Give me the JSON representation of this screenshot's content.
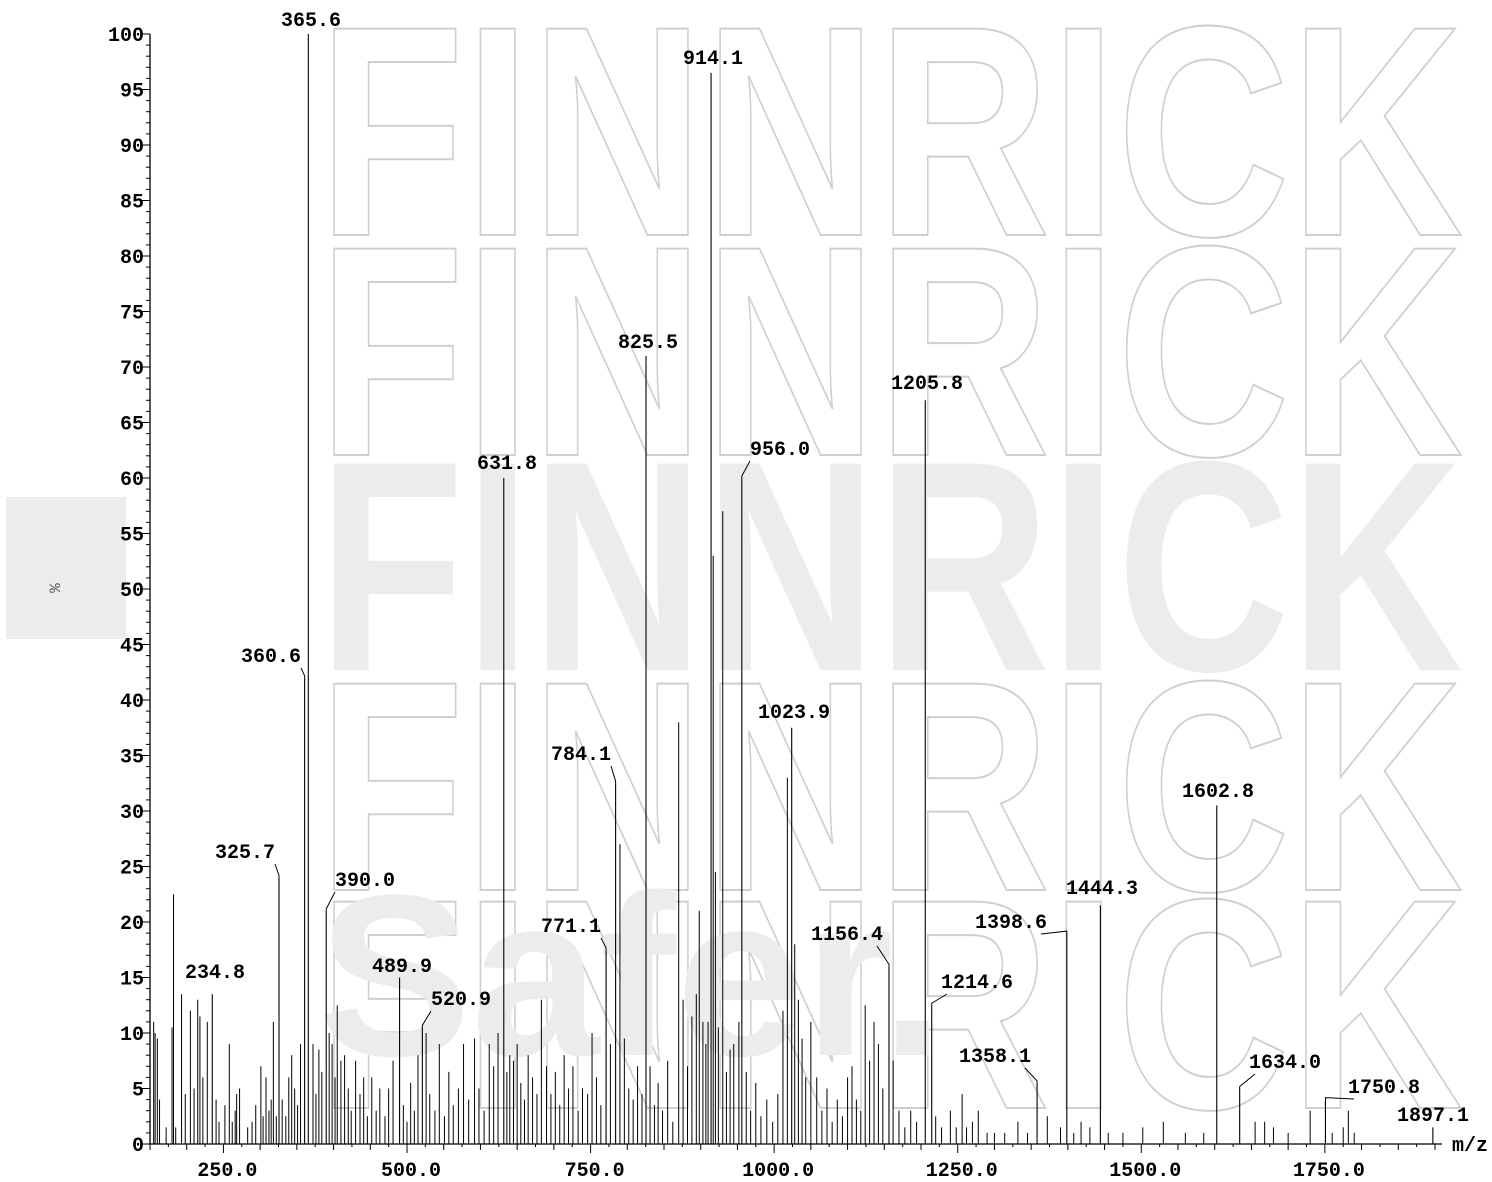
{
  "watermark": {
    "text": "FINNRICK",
    "subtext": "Safer."
  },
  "chart_data": {
    "type": "bar",
    "xlabel": "m/z",
    "ylabel": "%",
    "xlim": [
      150,
      1900
    ],
    "ylim": [
      0,
      100
    ],
    "x_ticks": [
      250.0,
      500.0,
      750.0,
      1000.0,
      1250.0,
      1500.0,
      1750.0
    ],
    "x_tick_labels": [
      "250.0",
      "500.0",
      "750.0",
      "1000.0",
      "1250.0",
      "1500.0",
      "1750.0"
    ],
    "y_ticks": [
      0,
      5,
      10,
      15,
      20,
      25,
      30,
      35,
      40,
      45,
      50,
      55,
      60,
      65,
      70,
      75,
      80,
      85,
      90,
      95,
      100
    ],
    "y_tick_labels": [
      "0",
      "5",
      "10",
      "15",
      "20",
      "25",
      "30",
      "35",
      "40",
      "45",
      "50",
      "55",
      "60",
      "65",
      "70",
      "75",
      "80",
      "85",
      "90",
      "95",
      "100"
    ],
    "labeled_peaks": [
      {
        "mz": 234.8,
        "intensity": 13.5,
        "label": "234.8"
      },
      {
        "mz": 325.7,
        "intensity": 24.0,
        "label": "325.7"
      },
      {
        "mz": 360.6,
        "intensity": 42.0,
        "label": "360.6"
      },
      {
        "mz": 365.6,
        "intensity": 100.0,
        "label": "365.6"
      },
      {
        "mz": 390.0,
        "intensity": 21.0,
        "label": "390.0"
      },
      {
        "mz": 489.9,
        "intensity": 15.0,
        "label": "489.9"
      },
      {
        "mz": 520.9,
        "intensity": 10.5,
        "label": "520.9"
      },
      {
        "mz": 631.8,
        "intensity": 60.0,
        "label": "631.8"
      },
      {
        "mz": 771.1,
        "intensity": 17.5,
        "label": "771.1"
      },
      {
        "mz": 784.1,
        "intensity": 32.5,
        "label": "784.1"
      },
      {
        "mz": 825.5,
        "intensity": 71.0,
        "label": "825.5"
      },
      {
        "mz": 914.1,
        "intensity": 96.5,
        "label": "914.1"
      },
      {
        "mz": 956.0,
        "intensity": 60.0,
        "label": "956.0"
      },
      {
        "mz": 1023.9,
        "intensity": 37.5,
        "label": "1023.9"
      },
      {
        "mz": 1156.4,
        "intensity": 16.0,
        "label": "1156.4"
      },
      {
        "mz": 1205.8,
        "intensity": 67.0,
        "label": "1205.8"
      },
      {
        "mz": 1214.6,
        "intensity": 12.5,
        "label": "1214.6"
      },
      {
        "mz": 1358.1,
        "intensity": 5.5,
        "label": "1358.1"
      },
      {
        "mz": 1398.6,
        "intensity": 19.0,
        "label": "1398.6"
      },
      {
        "mz": 1444.3,
        "intensity": 21.5,
        "label": "1444.3"
      },
      {
        "mz": 1602.8,
        "intensity": 30.5,
        "label": "1602.8"
      },
      {
        "mz": 1634.0,
        "intensity": 5.0,
        "label": "1634.0"
      },
      {
        "mz": 1750.8,
        "intensity": 4.0,
        "label": "1750.8"
      },
      {
        "mz": 1897.1,
        "intensity": 1.5,
        "label": "1897.1"
      }
    ],
    "unlabeled_peaks": [
      {
        "mz": 155,
        "intensity": 11.0
      },
      {
        "mz": 157,
        "intensity": 10.0
      },
      {
        "mz": 160,
        "intensity": 9.5
      },
      {
        "mz": 163,
        "intensity": 4.0
      },
      {
        "mz": 172,
        "intensity": 1.5
      },
      {
        "mz": 180,
        "intensity": 10.5
      },
      {
        "mz": 182,
        "intensity": 22.5
      },
      {
        "mz": 185,
        "intensity": 1.5
      },
      {
        "mz": 193,
        "intensity": 13.5
      },
      {
        "mz": 198,
        "intensity": 4.5
      },
      {
        "mz": 205,
        "intensity": 12.0
      },
      {
        "mz": 210,
        "intensity": 5.0
      },
      {
        "mz": 215,
        "intensity": 13.0
      },
      {
        "mz": 218,
        "intensity": 11.5
      },
      {
        "mz": 222,
        "intensity": 6.0
      },
      {
        "mz": 228,
        "intensity": 11.0
      },
      {
        "mz": 240,
        "intensity": 4.0
      },
      {
        "mz": 244,
        "intensity": 2.0
      },
      {
        "mz": 252,
        "intensity": 3.5
      },
      {
        "mz": 258,
        "intensity": 9.0
      },
      {
        "mz": 262,
        "intensity": 2.0
      },
      {
        "mz": 266,
        "intensity": 3.0
      },
      {
        "mz": 268,
        "intensity": 4.5
      },
      {
        "mz": 272,
        "intensity": 5.0
      },
      {
        "mz": 283,
        "intensity": 1.5
      },
      {
        "mz": 289,
        "intensity": 2.0
      },
      {
        "mz": 294,
        "intensity": 3.5
      },
      {
        "mz": 301,
        "intensity": 7.0
      },
      {
        "mz": 304,
        "intensity": 2.5
      },
      {
        "mz": 308,
        "intensity": 6.0
      },
      {
        "mz": 312,
        "intensity": 3.0
      },
      {
        "mz": 315,
        "intensity": 4.0
      },
      {
        "mz": 318,
        "intensity": 11.0
      },
      {
        "mz": 322,
        "intensity": 2.5
      },
      {
        "mz": 330,
        "intensity": 4.0
      },
      {
        "mz": 335,
        "intensity": 2.5
      },
      {
        "mz": 339,
        "intensity": 6.0
      },
      {
        "mz": 343,
        "intensity": 8.0
      },
      {
        "mz": 347,
        "intensity": 5.0
      },
      {
        "mz": 351,
        "intensity": 3.5
      },
      {
        "mz": 355,
        "intensity": 9.0
      },
      {
        "mz": 372,
        "intensity": 9.0
      },
      {
        "mz": 376,
        "intensity": 4.5
      },
      {
        "mz": 380,
        "intensity": 8.5
      },
      {
        "mz": 384,
        "intensity": 6.5
      },
      {
        "mz": 394,
        "intensity": 10.0
      },
      {
        "mz": 398,
        "intensity": 9.0
      },
      {
        "mz": 402,
        "intensity": 6.0
      },
      {
        "mz": 405,
        "intensity": 12.5
      },
      {
        "mz": 410,
        "intensity": 7.5
      },
      {
        "mz": 415,
        "intensity": 8.0
      },
      {
        "mz": 420,
        "intensity": 5.0
      },
      {
        "mz": 424,
        "intensity": 3.0
      },
      {
        "mz": 430,
        "intensity": 7.5
      },
      {
        "mz": 436,
        "intensity": 4.5
      },
      {
        "mz": 441,
        "intensity": 6.0
      },
      {
        "mz": 446,
        "intensity": 2.5
      },
      {
        "mz": 452,
        "intensity": 6.0
      },
      {
        "mz": 458,
        "intensity": 3.0
      },
      {
        "mz": 463,
        "intensity": 5.0
      },
      {
        "mz": 470,
        "intensity": 2.5
      },
      {
        "mz": 475,
        "intensity": 5.0
      },
      {
        "mz": 481,
        "intensity": 7.5
      },
      {
        "mz": 495,
        "intensity": 3.5
      },
      {
        "mz": 500,
        "intensity": 2.0
      },
      {
        "mz": 505,
        "intensity": 5.5
      },
      {
        "mz": 510,
        "intensity": 3.0
      },
      {
        "mz": 515,
        "intensity": 8.0
      },
      {
        "mz": 526,
        "intensity": 10.0
      },
      {
        "mz": 531,
        "intensity": 4.5
      },
      {
        "mz": 538,
        "intensity": 3.0
      },
      {
        "mz": 544,
        "intensity": 9.0
      },
      {
        "mz": 551,
        "intensity": 2.5
      },
      {
        "mz": 557,
        "intensity": 6.5
      },
      {
        "mz": 563,
        "intensity": 3.5
      },
      {
        "mz": 570,
        "intensity": 5.0
      },
      {
        "mz": 577,
        "intensity": 9.0
      },
      {
        "mz": 584,
        "intensity": 4.0
      },
      {
        "mz": 592,
        "intensity": 9.5
      },
      {
        "mz": 598,
        "intensity": 5.0
      },
      {
        "mz": 605,
        "intensity": 3.0
      },
      {
        "mz": 612,
        "intensity": 9.0
      },
      {
        "mz": 618,
        "intensity": 7.0
      },
      {
        "mz": 624,
        "intensity": 10.0
      },
      {
        "mz": 636,
        "intensity": 6.5
      },
      {
        "mz": 640,
        "intensity": 8.0
      },
      {
        "mz": 645,
        "intensity": 7.5
      },
      {
        "mz": 650,
        "intensity": 9.0
      },
      {
        "mz": 655,
        "intensity": 5.5
      },
      {
        "mz": 660,
        "intensity": 4.0
      },
      {
        "mz": 665,
        "intensity": 8.0
      },
      {
        "mz": 671,
        "intensity": 6.0
      },
      {
        "mz": 677,
        "intensity": 4.5
      },
      {
        "mz": 683,
        "intensity": 13.0
      },
      {
        "mz": 690,
        "intensity": 7.0
      },
      {
        "mz": 696,
        "intensity": 4.5
      },
      {
        "mz": 702,
        "intensity": 6.5
      },
      {
        "mz": 708,
        "intensity": 3.5
      },
      {
        "mz": 714,
        "intensity": 8.0
      },
      {
        "mz": 720,
        "intensity": 5.0
      },
      {
        "mz": 726,
        "intensity": 7.0
      },
      {
        "mz": 733,
        "intensity": 3.0
      },
      {
        "mz": 739,
        "intensity": 5.0
      },
      {
        "mz": 746,
        "intensity": 4.5
      },
      {
        "mz": 752,
        "intensity": 10.0
      },
      {
        "mz": 758,
        "intensity": 6.0
      },
      {
        "mz": 764,
        "intensity": 3.5
      },
      {
        "mz": 777,
        "intensity": 9.0
      },
      {
        "mz": 790,
        "intensity": 27.0
      },
      {
        "mz": 796,
        "intensity": 9.5
      },
      {
        "mz": 802,
        "intensity": 5.0
      },
      {
        "mz": 808,
        "intensity": 4.0
      },
      {
        "mz": 814,
        "intensity": 7.0
      },
      {
        "mz": 820,
        "intensity": 4.5
      },
      {
        "mz": 831,
        "intensity": 7.0
      },
      {
        "mz": 837,
        "intensity": 3.5
      },
      {
        "mz": 842,
        "intensity": 5.5
      },
      {
        "mz": 848,
        "intensity": 3.0
      },
      {
        "mz": 855,
        "intensity": 7.5
      },
      {
        "mz": 862,
        "intensity": 2.0
      },
      {
        "mz": 870,
        "intensity": 38.0
      },
      {
        "mz": 876,
        "intensity": 13.0
      },
      {
        "mz": 882,
        "intensity": 7.0
      },
      {
        "mz": 888,
        "intensity": 11.5
      },
      {
        "mz": 894,
        "intensity": 13.5
      },
      {
        "mz": 898,
        "intensity": 21.0
      },
      {
        "mz": 903,
        "intensity": 11.0
      },
      {
        "mz": 907,
        "intensity": 9.0
      },
      {
        "mz": 910,
        "intensity": 11.0
      },
      {
        "mz": 917,
        "intensity": 53.0
      },
      {
        "mz": 920,
        "intensity": 24.5
      },
      {
        "mz": 924,
        "intensity": 10.5
      },
      {
        "mz": 930,
        "intensity": 57.0
      },
      {
        "mz": 935,
        "intensity": 6.5
      },
      {
        "mz": 940,
        "intensity": 8.5
      },
      {
        "mz": 945,
        "intensity": 9.0
      },
      {
        "mz": 952,
        "intensity": 11.0
      },
      {
        "mz": 962,
        "intensity": 6.5
      },
      {
        "mz": 968,
        "intensity": 3.0
      },
      {
        "mz": 975,
        "intensity": 5.5
      },
      {
        "mz": 982,
        "intensity": 2.5
      },
      {
        "mz": 990,
        "intensity": 4.0
      },
      {
        "mz": 998,
        "intensity": 2.0
      },
      {
        "mz": 1005,
        "intensity": 4.5
      },
      {
        "mz": 1012,
        "intensity": 12.0
      },
      {
        "mz": 1018,
        "intensity": 33.0
      },
      {
        "mz": 1028,
        "intensity": 18.0
      },
      {
        "mz": 1033,
        "intensity": 13.0
      },
      {
        "mz": 1038,
        "intensity": 9.5
      },
      {
        "mz": 1043,
        "intensity": 6.0
      },
      {
        "mz": 1050,
        "intensity": 11.0
      },
      {
        "mz": 1058,
        "intensity": 6.0
      },
      {
        "mz": 1065,
        "intensity": 3.0
      },
      {
        "mz": 1072,
        "intensity": 5.0
      },
      {
        "mz": 1079,
        "intensity": 2.0
      },
      {
        "mz": 1086,
        "intensity": 4.0
      },
      {
        "mz": 1093,
        "intensity": 2.5
      },
      {
        "mz": 1100,
        "intensity": 6.0
      },
      {
        "mz": 1106,
        "intensity": 7.0
      },
      {
        "mz": 1112,
        "intensity": 4.0
      },
      {
        "mz": 1118,
        "intensity": 3.0
      },
      {
        "mz": 1124,
        "intensity": 12.5
      },
      {
        "mz": 1130,
        "intensity": 7.5
      },
      {
        "mz": 1136,
        "intensity": 11.0
      },
      {
        "mz": 1142,
        "intensity": 9.0
      },
      {
        "mz": 1148,
        "intensity": 5.0
      },
      {
        "mz": 1162,
        "intensity": 7.5
      },
      {
        "mz": 1170,
        "intensity": 3.0
      },
      {
        "mz": 1178,
        "intensity": 1.5
      },
      {
        "mz": 1186,
        "intensity": 3.0
      },
      {
        "mz": 1194,
        "intensity": 2.0
      },
      {
        "mz": 1220,
        "intensity": 2.5
      },
      {
        "mz": 1228,
        "intensity": 1.5
      },
      {
        "mz": 1240,
        "intensity": 3.0
      },
      {
        "mz": 1248,
        "intensity": 1.5
      },
      {
        "mz": 1256,
        "intensity": 4.5
      },
      {
        "mz": 1262,
        "intensity": 1.5
      },
      {
        "mz": 1270,
        "intensity": 2.0
      },
      {
        "mz": 1278,
        "intensity": 3.0
      },
      {
        "mz": 1290,
        "intensity": 1.0
      },
      {
        "mz": 1300,
        "intensity": 1.0
      },
      {
        "mz": 1314,
        "intensity": 1.0
      },
      {
        "mz": 1332,
        "intensity": 2.0
      },
      {
        "mz": 1345,
        "intensity": 1.0
      },
      {
        "mz": 1372,
        "intensity": 2.5
      },
      {
        "mz": 1390,
        "intensity": 1.5
      },
      {
        "mz": 1408,
        "intensity": 1.0
      },
      {
        "mz": 1418,
        "intensity": 2.0
      },
      {
        "mz": 1430,
        "intensity": 1.5
      },
      {
        "mz": 1455,
        "intensity": 1.0
      },
      {
        "mz": 1475,
        "intensity": 1.0
      },
      {
        "mz": 1502,
        "intensity": 1.5
      },
      {
        "mz": 1530,
        "intensity": 2.0
      },
      {
        "mz": 1560,
        "intensity": 1.0
      },
      {
        "mz": 1585,
        "intensity": 1.0
      },
      {
        "mz": 1655,
        "intensity": 2.0
      },
      {
        "mz": 1668,
        "intensity": 2.0
      },
      {
        "mz": 1680,
        "intensity": 1.5
      },
      {
        "mz": 1700,
        "intensity": 1.0
      },
      {
        "mz": 1730,
        "intensity": 3.0
      },
      {
        "mz": 1760,
        "intensity": 1.0
      },
      {
        "mz": 1775,
        "intensity": 1.5
      },
      {
        "mz": 1782,
        "intensity": 3.0
      },
      {
        "mz": 1790,
        "intensity": 1.0
      }
    ]
  }
}
